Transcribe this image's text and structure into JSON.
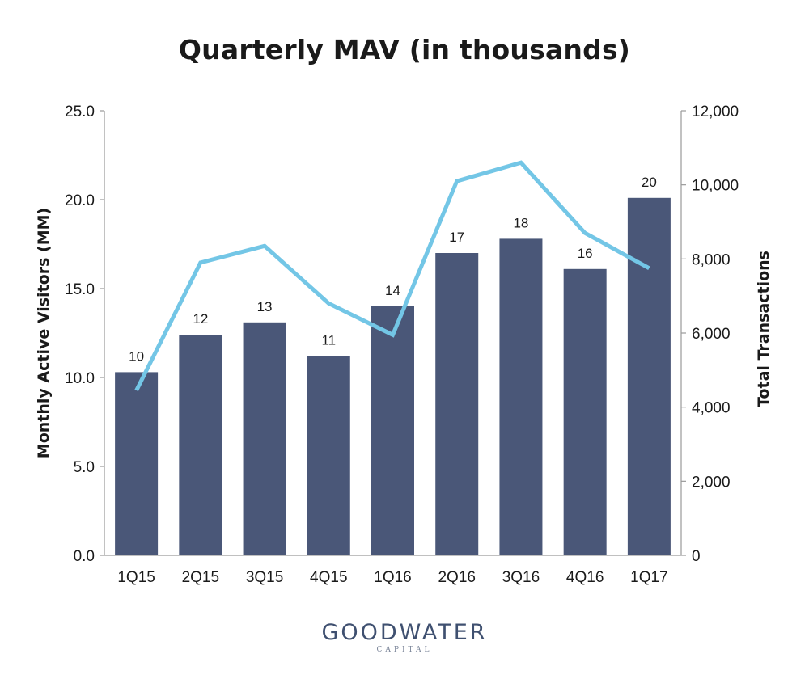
{
  "chart_data": {
    "type": "bar",
    "title": "Quarterly MAV (in thousands)",
    "categories": [
      "1Q15",
      "2Q15",
      "3Q15",
      "4Q15",
      "1Q16",
      "2Q16",
      "3Q16",
      "4Q16",
      "1Q17"
    ],
    "bar_series": {
      "values": [
        10.3,
        12.4,
        13.1,
        11.2,
        14.0,
        17.0,
        17.8,
        16.1,
        20.1
      ],
      "data_labels": [
        "10",
        "12",
        "13",
        "11",
        "14",
        "17",
        "18",
        "16",
        "20"
      ],
      "color": "#4a5778",
      "axis": "left"
    },
    "line_series": {
      "values": [
        4450,
        7900,
        8350,
        6800,
        5950,
        10100,
        10600,
        8700,
        7750
      ],
      "color": "#73c6e6",
      "axis": "right"
    },
    "ylabel": "Monthly Active Visitors (MM)",
    "y2label": "Total Transactions",
    "ylim": [
      0,
      25
    ],
    "y2lim": [
      0,
      12000
    ],
    "yticks": [
      "0.0",
      "5.0",
      "10.0",
      "15.0",
      "20.0",
      "25.0"
    ],
    "y2ticks": [
      "0",
      "2,000",
      "4,000",
      "6,000",
      "8,000",
      "10,000",
      "12,000"
    ],
    "grid": false
  },
  "logo": {
    "main": "GOODWATER",
    "sub": "CAPITAL"
  }
}
